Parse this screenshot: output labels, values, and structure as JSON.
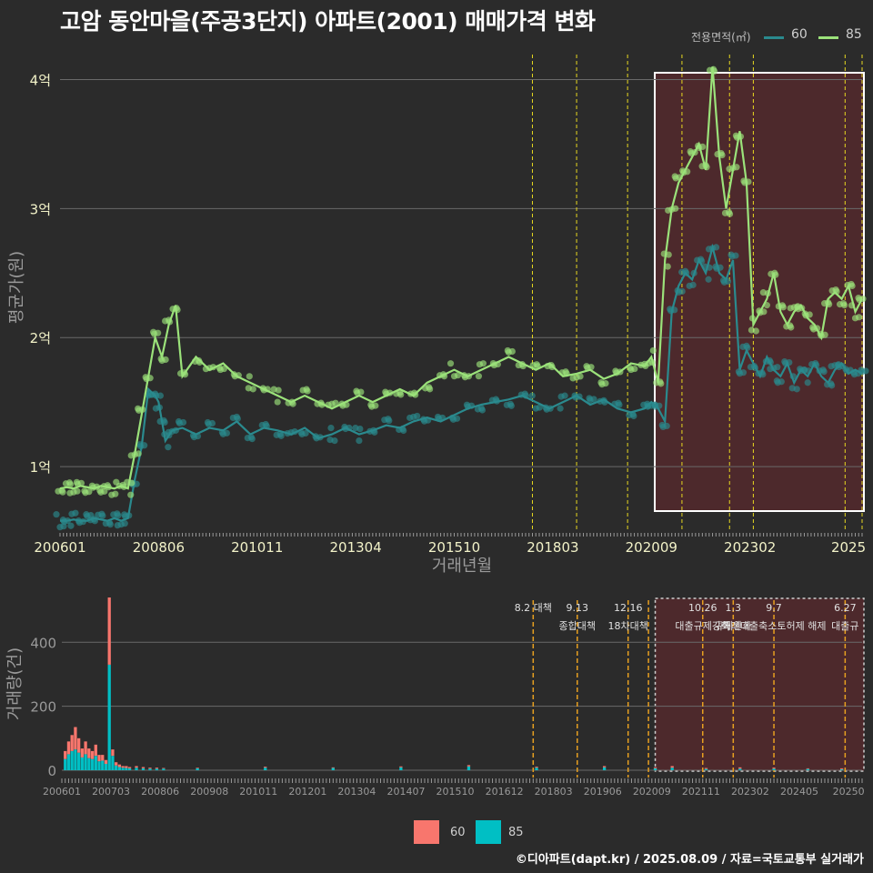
{
  "title": "고암 동안마을(주공3단지) 아파트(2001) 매매가격 변화",
  "footer": "©디아파트(dapt.kr) / 2025.08.09 / 자료=국토교통부 실거래가",
  "legend_top": {
    "title": "전용면적(㎡)",
    "items": [
      {
        "label": "60",
        "color": "#2a8a8e"
      },
      {
        "label": "85",
        "color": "#9be27a"
      }
    ]
  },
  "legend_bottom": {
    "items": [
      {
        "label": "60",
        "color": "#f8766d"
      },
      {
        "label": "85",
        "color": "#00bfc4"
      }
    ]
  },
  "chart_data": [
    {
      "type": "line",
      "title": "고암 동안마을(주공3단지) 아파트(2001) 매매가격 변화",
      "xlabel": "거래년월",
      "ylabel": "평균가(원)",
      "x_tick_labels": [
        "200601",
        "200806",
        "201011",
        "201304",
        "201510",
        "201803",
        "202009",
        "202302",
        "2025"
      ],
      "y_tick_labels": [
        "1억",
        "2억",
        "3억",
        "4억"
      ],
      "ylim_eok": [
        0.5,
        4.25
      ],
      "xlim_month_index": [
        0,
        236
      ],
      "policy_line_months": [
        139,
        152,
        167,
        183,
        197,
        204,
        231,
        236
      ],
      "highlight_range_months": [
        175,
        236
      ],
      "series": [
        {
          "name": "60",
          "color": "#2a8a8e",
          "x": [
            0,
            2,
            4,
            6,
            8,
            10,
            12,
            14,
            16,
            18,
            20,
            22,
            24,
            26,
            28,
            29,
            30,
            31,
            33,
            36,
            40,
            44,
            48,
            52,
            56,
            60,
            64,
            68,
            72,
            76,
            80,
            84,
            88,
            92,
            96,
            100,
            104,
            108,
            112,
            116,
            120,
            124,
            128,
            132,
            136,
            140,
            144,
            148,
            152,
            156,
            160,
            164,
            168,
            172,
            174,
            176,
            178,
            180,
            182,
            184,
            186,
            188,
            190,
            192,
            194,
            196,
            198,
            200,
            202,
            204,
            206,
            208,
            210,
            212,
            214,
            216,
            218,
            220,
            222,
            224,
            226,
            228,
            230,
            232,
            234,
            236
          ],
          "y": [
            0.58,
            0.58,
            0.59,
            0.58,
            0.58,
            0.6,
            0.59,
            0.58,
            0.6,
            0.58,
            0.6,
            0.9,
            1.15,
            1.6,
            1.55,
            1.5,
            1.35,
            1.2,
            1.28,
            1.3,
            1.25,
            1.3,
            1.28,
            1.35,
            1.25,
            1.3,
            1.28,
            1.25,
            1.3,
            1.22,
            1.25,
            1.3,
            1.25,
            1.28,
            1.32,
            1.3,
            1.35,
            1.38,
            1.35,
            1.4,
            1.45,
            1.48,
            1.5,
            1.52,
            1.55,
            1.5,
            1.45,
            1.5,
            1.55,
            1.48,
            1.52,
            1.45,
            1.42,
            1.45,
            1.5,
            1.45,
            1.35,
            2.2,
            2.4,
            2.5,
            2.45,
            2.6,
            2.5,
            2.7,
            2.5,
            2.45,
            2.6,
            1.75,
            1.9,
            1.8,
            1.7,
            1.85,
            1.75,
            1.7,
            1.8,
            1.65,
            1.75,
            1.7,
            1.8,
            1.7,
            1.65,
            1.75,
            1.8,
            1.72,
            1.75,
            1.72
          ]
        },
        {
          "name": "85",
          "color": "#9be27a",
          "x": [
            0,
            2,
            4,
            6,
            8,
            10,
            12,
            14,
            16,
            18,
            20,
            22,
            24,
            26,
            28,
            30,
            32,
            34,
            36,
            40,
            44,
            48,
            52,
            56,
            60,
            64,
            68,
            72,
            76,
            80,
            84,
            88,
            92,
            96,
            100,
            104,
            108,
            112,
            116,
            120,
            124,
            128,
            132,
            136,
            140,
            144,
            148,
            152,
            156,
            160,
            164,
            168,
            172,
            174,
            176,
            178,
            180,
            182,
            184,
            186,
            188,
            190,
            192,
            194,
            196,
            198,
            200,
            202,
            204,
            206,
            208,
            210,
            212,
            214,
            216,
            218,
            220,
            222,
            224,
            226,
            228,
            230,
            232,
            234,
            236
          ],
          "y": [
            0.83,
            0.84,
            0.83,
            0.85,
            0.84,
            0.83,
            0.85,
            0.84,
            0.83,
            0.85,
            0.83,
            1.1,
            1.4,
            1.7,
            2.0,
            1.85,
            2.1,
            2.25,
            1.7,
            1.85,
            1.75,
            1.8,
            1.7,
            1.65,
            1.6,
            1.55,
            1.5,
            1.55,
            1.5,
            1.45,
            1.5,
            1.55,
            1.5,
            1.55,
            1.6,
            1.55,
            1.65,
            1.7,
            1.75,
            1.7,
            1.75,
            1.8,
            1.85,
            1.8,
            1.75,
            1.8,
            1.7,
            1.72,
            1.75,
            1.68,
            1.72,
            1.8,
            1.78,
            1.85,
            1.65,
            2.6,
            3.0,
            3.2,
            3.3,
            3.4,
            3.5,
            3.3,
            4.1,
            3.4,
            3.0,
            3.3,
            3.6,
            3.2,
            2.1,
            2.2,
            2.3,
            2.5,
            2.2,
            2.1,
            2.2,
            2.25,
            2.15,
            2.1,
            2.0,
            2.3,
            2.35,
            2.3,
            2.4,
            2.2,
            2.3
          ]
        }
      ]
    },
    {
      "type": "bar",
      "ylabel": "거래량(건)",
      "x_tick_labels": [
        "200601",
        "200703",
        "200806",
        "200908",
        "201011",
        "201201",
        "201304",
        "201407",
        "201510",
        "201612",
        "201803",
        "201906",
        "202009",
        "202111",
        "202302",
        "202405",
        "20250"
      ],
      "y_tick_labels": [
        "0",
        "200",
        "400"
      ],
      "ylim": [
        0,
        560
      ],
      "stacked": true,
      "policy_lines": [
        {
          "month": 139,
          "date": "8.2 대책",
          "label": ""
        },
        {
          "month": 152,
          "date": "9.13",
          "label": "종합대책"
        },
        {
          "month": 167,
          "date": "12.16",
          "label": "18차대책"
        },
        {
          "month": 173,
          "date": "",
          "label": ""
        },
        {
          "month": 189,
          "date": "10.26",
          "label": "대출규제강화"
        },
        {
          "month": 198,
          "date": "1.3",
          "label": "규제완화"
        },
        {
          "month": 210,
          "date": "9.7",
          "label": "특례대출축소토허제 해제"
        },
        {
          "month": 231,
          "date": "6.27",
          "label": "대출규"
        }
      ],
      "series": [
        {
          "name": "60",
          "color": "#f8766d",
          "x": [
            1,
            2,
            3,
            4,
            5,
            6,
            7,
            8,
            9,
            10,
            11,
            12,
            13,
            14,
            15,
            16,
            17,
            18,
            19,
            20,
            22,
            24,
            26,
            28,
            30,
            40,
            60,
            80,
            100,
            120,
            140,
            160,
            175,
            180,
            190,
            200,
            210,
            220,
            230
          ],
          "values": [
            25,
            40,
            50,
            70,
            45,
            28,
            40,
            30,
            25,
            35,
            20,
            18,
            12,
            210,
            20,
            10,
            8,
            5,
            6,
            4,
            5,
            4,
            3,
            3,
            2,
            2,
            3,
            2,
            3,
            4,
            3,
            4,
            3,
            5,
            3,
            4,
            3,
            2,
            3
          ]
        },
        {
          "name": "85",
          "color": "#00bfc4",
          "x": [
            1,
            2,
            3,
            4,
            5,
            6,
            7,
            8,
            9,
            10,
            11,
            12,
            13,
            14,
            15,
            16,
            17,
            18,
            19,
            20,
            22,
            24,
            26,
            28,
            30,
            40,
            60,
            80,
            100,
            120,
            140,
            160,
            175,
            180,
            190,
            200,
            210,
            220,
            230
          ],
          "values": [
            35,
            50,
            60,
            65,
            55,
            40,
            50,
            38,
            35,
            45,
            28,
            30,
            20,
            330,
            45,
            15,
            10,
            8,
            7,
            6,
            8,
            6,
            5,
            5,
            5,
            6,
            8,
            7,
            9,
            12,
            8,
            9,
            6,
            8,
            4,
            5,
            5,
            4,
            3
          ]
        }
      ]
    }
  ]
}
